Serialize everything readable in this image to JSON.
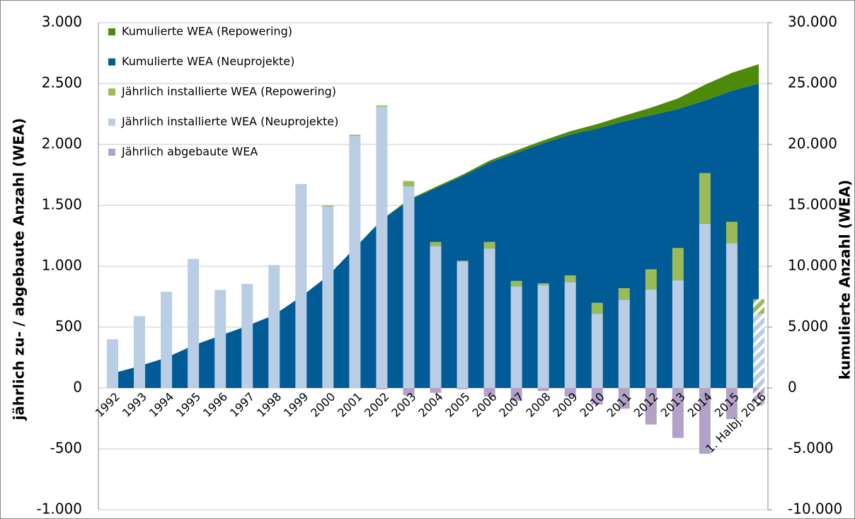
{
  "chart_data": {
    "type": "bar_area_combo",
    "categories": [
      "1992",
      "1993",
      "1994",
      "1995",
      "1996",
      "1997",
      "1998",
      "1999",
      "2000",
      "2001",
      "2002",
      "2003",
      "2004",
      "2005",
      "2006",
      "2007",
      "2008",
      "2009",
      "2010",
      "2011",
      "2012",
      "2013",
      "2014",
      "2015",
      "1. Halbj. 2016"
    ],
    "series": [
      {
        "name": "Kumulierte WEA (Repowering)",
        "type": "area",
        "axis": "y2",
        "color": "#4e8a0a",
        "values": [
          0,
          0,
          0,
          0,
          0,
          0,
          0,
          0,
          10,
          20,
          30,
          80,
          110,
          120,
          170,
          210,
          230,
          280,
          370,
          460,
          620,
          880,
          1300,
          1480,
          1590
        ]
      },
      {
        "name": "Kumulierte WEA (Neuprojekte)",
        "type": "area",
        "axis": "y2",
        "color": "#005b96",
        "values": [
          1200,
          1800,
          2500,
          3500,
          4300,
          5100,
          6000,
          7500,
          9200,
          11500,
          13800,
          15400,
          16400,
          17400,
          18500,
          19300,
          20100,
          20800,
          21300,
          21900,
          22400,
          22900,
          23600,
          24400,
          25000
        ]
      },
      {
        "name": "Jährlich installierte WEA (Repowering)",
        "type": "bar",
        "axis": "y",
        "color": "#9bbb59",
        "values": [
          0,
          0,
          0,
          0,
          0,
          0,
          0,
          0,
          10,
          10,
          10,
          45,
          35,
          5,
          55,
          45,
          15,
          55,
          90,
          95,
          165,
          265,
          415,
          175,
          120
        ]
      },
      {
        "name": "Jährlich installierte WEA (Neuprojekte)",
        "type": "bar",
        "axis": "y",
        "color": "#b9cde5",
        "values": [
          400,
          590,
          790,
          1060,
          805,
          855,
          1010,
          1675,
          1490,
          2070,
          2310,
          1655,
          1165,
          1040,
          1145,
          835,
          845,
          870,
          610,
          725,
          810,
          885,
          1350,
          1190,
          610
        ]
      },
      {
        "name": "Jährlich abgebaute WEA",
        "type": "bar",
        "axis": "y",
        "color": "#b3a2c7",
        "values": [
          0,
          0,
          0,
          0,
          0,
          0,
          0,
          0,
          0,
          0,
          -10,
          -60,
          -40,
          -10,
          -70,
          -105,
          -25,
          -70,
          -135,
          -170,
          -300,
          -410,
          -540,
          -255,
          -145
        ]
      }
    ],
    "last_category_hatched": true,
    "y_label": "jährlich zu- / abgebaute Anzahl (WEA)",
    "y2_label": "kumulierte Anzahl (WEA)",
    "ylim": [
      -1000,
      3000
    ],
    "yticks": [
      {
        "value": 3000,
        "label": "3.000"
      },
      {
        "value": 2500,
        "label": "2.500"
      },
      {
        "value": 2000,
        "label": "2.000"
      },
      {
        "value": 1500,
        "label": "1.500"
      },
      {
        "value": 1000,
        "label": "1.000"
      },
      500,
      0,
      {
        "value": -500,
        "label": "-500"
      },
      {
        "value": -1000,
        "label": "-1.000"
      }
    ],
    "y2lim": [
      -10000,
      30000
    ],
    "y2ticks": [
      {
        "value": 30000,
        "label": "30.000"
      },
      {
        "value": 25000,
        "label": "25.000"
      },
      {
        "value": 20000,
        "label": "20.000"
      },
      {
        "value": 15000,
        "label": "15.000"
      },
      {
        "value": 10000,
        "label": "10.000"
      },
      {
        "value": 5000,
        "label": "5.000"
      },
      0,
      {
        "value": -5000,
        "label": "-5.000"
      },
      {
        "value": -10000,
        "label": "-10.000"
      }
    ],
    "grid": true,
    "legend": "top-left"
  }
}
